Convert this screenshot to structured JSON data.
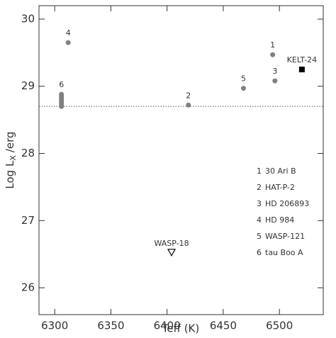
{
  "chart_data": {
    "type": "scatter",
    "x_label": "Teff (K)",
    "y_label": {
      "main": "Log L",
      "sub": "X",
      "unit": "/erg"
    },
    "xlim": [
      6286,
      6539
    ],
    "ylim": [
      25.6,
      30.2
    ],
    "xticks": [
      6300,
      6350,
      6400,
      6450,
      6500
    ],
    "yticks": [
      26,
      27,
      28,
      29,
      30
    ],
    "reference_line": 28.7,
    "series": [
      {
        "marker": "circle",
        "color": "#808080",
        "labels": [
          "1",
          "2",
          "3",
          "4",
          "5",
          "6",
          null,
          null,
          null,
          null,
          null,
          null
        ],
        "x": [
          6494,
          6419,
          6496,
          6312,
          6468,
          6306,
          6306,
          6306,
          6306,
          6306,
          6306,
          6306
        ],
        "y": [
          29.47,
          28.72,
          29.08,
          29.65,
          28.97,
          28.88,
          28.85,
          28.82,
          28.79,
          28.76,
          28.73,
          28.7
        ]
      },
      {
        "marker": "square",
        "color": "#000000",
        "labels": [
          "KELT-24"
        ],
        "x": [
          6520
        ],
        "y": [
          29.25
        ]
      },
      {
        "marker": "triangle-down",
        "color": "#000000",
        "labels": [
          "WASP-18"
        ],
        "x": [
          6404
        ],
        "y": [
          26.52
        ]
      }
    ],
    "legend": [
      {
        "key": "1",
        "text": "30 Ari B"
      },
      {
        "key": "2",
        "text": "HAT-P-2"
      },
      {
        "key": "3",
        "text": "HD 206893"
      },
      {
        "key": "4",
        "text": "HD 984"
      },
      {
        "key": "5",
        "text": "WASP-121"
      },
      {
        "key": "6",
        "text": "tau Boo A"
      }
    ]
  }
}
